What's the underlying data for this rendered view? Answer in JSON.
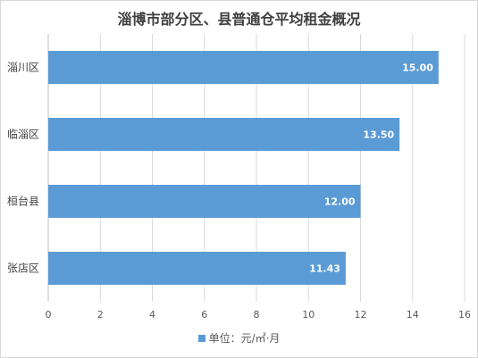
{
  "chart_data": {
    "type": "bar",
    "orientation": "horizontal",
    "title": "淄博市部分区、县普通仓平均租金概况",
    "categories": [
      "淄川区",
      "临淄区",
      "桓台县",
      "张店区"
    ],
    "series": [
      {
        "name": "单位：元/㎡·月",
        "values": [
          15.0,
          13.5,
          12.0,
          11.43
        ],
        "value_labels": [
          "15.00",
          "13.50",
          "12.00",
          "11.43"
        ],
        "color": "#5b9bd5"
      }
    ],
    "xlim": [
      0,
      16
    ],
    "x_ticks": [
      "0",
      "2",
      "4",
      "6",
      "8",
      "10",
      "12",
      "14",
      "16"
    ],
    "grid": true,
    "legend_position": "bottom"
  }
}
